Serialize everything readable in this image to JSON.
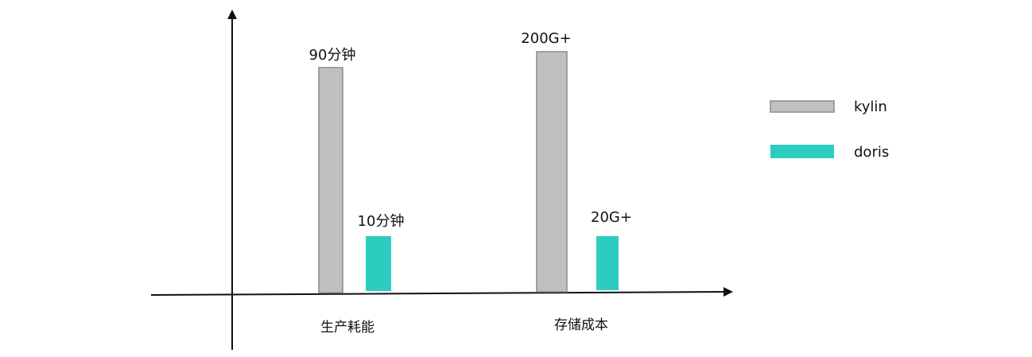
{
  "chart_data": {
    "type": "bar",
    "title": "",
    "xlabel": "",
    "ylabel": "",
    "categories": [
      "生产耗能",
      "存储成本"
    ],
    "series": [
      {
        "name": "kylin",
        "color": "#c0c0c0",
        "stroke": "#8a8a8a",
        "values": [
          90,
          200
        ]
      },
      {
        "name": "doris",
        "color": "#2ccdc0",
        "stroke": "#2ccdc0",
        "values": [
          10,
          20
        ]
      }
    ],
    "bar_labels": [
      [
        "90分钟",
        "200G+"
      ],
      [
        "10分钟",
        "20G+"
      ]
    ],
    "note_values": "bar heights are not to scale; values taken from bar labels",
    "legend_position": "right",
    "grid": false
  }
}
